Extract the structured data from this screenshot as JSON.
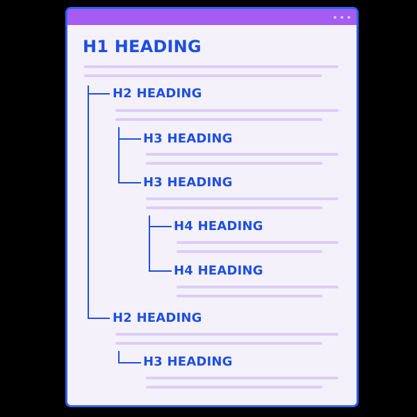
{
  "titlebar": {
    "dots": [
      "dot",
      "dot",
      "dot"
    ]
  },
  "headings": {
    "h1": "H1 HEADING",
    "h2_first": "H2 HEADING",
    "h3_first": "H3 HEADING",
    "h3_second": "H3 HEADING",
    "h4_first": "H4 HEADING",
    "h4_second": "H4 HEADING",
    "h2_second": "H2 HEADING",
    "h3_third": "H3 HEADING"
  },
  "colors": {
    "accent": "#1e4fe0",
    "border": "#2d63f0",
    "titlebar": "#a45cf2",
    "window_bg": "#f4f1fb",
    "text_line": "#dccdf6"
  }
}
